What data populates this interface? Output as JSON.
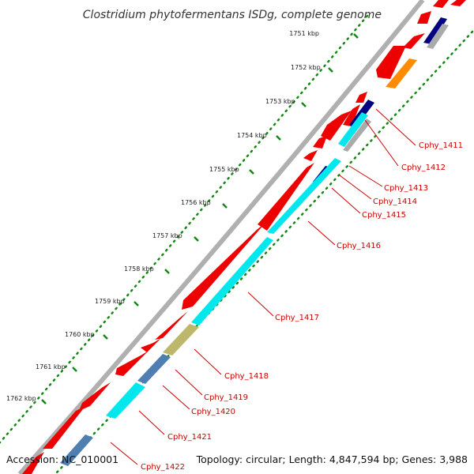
{
  "title": "Clostridium phytofermentans ISDg, complete genome",
  "accession": "Accession: NC_010001",
  "summary": "Topology: circular; Length: 4,847,594 bp; Genes: 3,988",
  "ticks": [
    "1751 kbp",
    "1752 kbp",
    "1753 kbp",
    "1754 kbp",
    "1755 kbp",
    "1756 kbp",
    "1757 kbp",
    "1758 kbp",
    "1759 kbp",
    "1760 kbp",
    "1761 kbp",
    "1762 kbp"
  ],
  "gene_labels": [
    "Cphy_1411",
    "Cphy_1412",
    "Cphy_1413",
    "Cphy_1414",
    "Cphy_1415",
    "Cphy_1416",
    "Cphy_1417",
    "Cphy_1418",
    "Cphy_1419",
    "Cphy_1420",
    "Cphy_1421",
    "Cphy_1422"
  ],
  "colors": {
    "cds": "#ee0000",
    "cyan": "#00e8ee",
    "navy": "#000080",
    "orange": "#ff8c00",
    "steel": "#4f7fb0",
    "khaki": "#bdb76b",
    "backbone": "#888888",
    "tick": "#118811",
    "label": "#cc0000"
  }
}
